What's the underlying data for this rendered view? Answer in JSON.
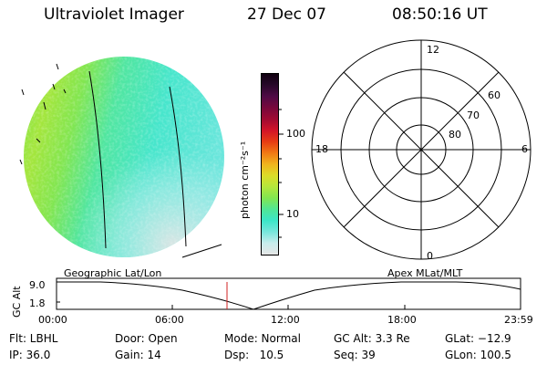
{
  "header": {
    "instrument": "Ultraviolet Imager",
    "date": "27 Dec 07",
    "time": "08:50:16 UT"
  },
  "colorbar": {
    "unit_label": "photon cm⁻²s⁻¹",
    "ticks": [
      "100",
      "10"
    ],
    "colors": [
      "#e6e6e6",
      "#c8ecec",
      "#78e6dc",
      "#3ce6c8",
      "#50e696",
      "#82e650",
      "#b4e63c",
      "#dcdc28",
      "#f0b41e",
      "#f07814",
      "#e63c14",
      "#d21428",
      "#a00a32",
      "#78083c",
      "#500a46",
      "#28082a",
      "#100010"
    ]
  },
  "polar_plot": {
    "mlt_labels": {
      "top": "12",
      "left": "18",
      "right": "6",
      "bottom": "0"
    },
    "lat_labels": [
      "60",
      "70",
      "80"
    ]
  },
  "altitude_plot": {
    "left_caption": "Geographic Lat/Lon",
    "right_caption": "Apex MLat/MLT",
    "ylabel": "GC Alt",
    "yticks": [
      "9.0",
      "1.8"
    ],
    "xticks": [
      "00:00",
      "06:00",
      "12:00",
      "18:00",
      "23:59"
    ]
  },
  "info": {
    "flt": "Flt: LBHL",
    "ip": "IP: 36.0",
    "door": "Door: Open",
    "gain": "Gain: 14",
    "mode": "Mode: Normal",
    "dsp": "Dsp:   10.5",
    "gcalt": "GC Alt: 3.3 Re",
    "seq": "Seq: 39",
    "glat": "GLat: −12.9",
    "glon": "GLon: 100.5"
  }
}
